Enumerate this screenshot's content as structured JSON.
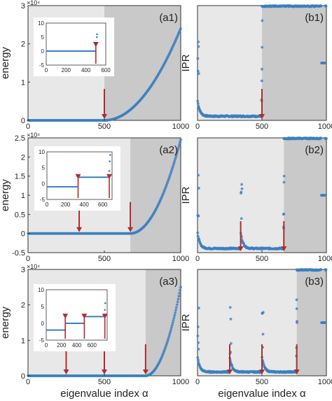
{
  "figure": {
    "colors": {
      "data": "#3b7fc0",
      "arrow": "#b22b2b",
      "shade_light": "#e8e8e8",
      "shade_dark": "#c9c9c9"
    }
  },
  "chart_data": [
    {
      "id": "a1",
      "type": "scatter",
      "panel_label": "(a1)",
      "ylabel": "energy",
      "xlabel": "",
      "exponent": "×10⁴",
      "xlim": [
        0,
        1000
      ],
      "ylim": [
        0,
        3
      ],
      "x_ticks": [
        "0",
        "500",
        "1000"
      ],
      "y_ticks": [
        "0",
        "1",
        "2",
        "3"
      ],
      "regions": [
        [
          0,
          500
        ],
        [
          500,
          1000
        ]
      ],
      "arrows": [
        500
      ],
      "series_model": {
        "kind": "energy",
        "thresholds": [
          500
        ],
        "curve": "quadratic",
        "y_end": 2.4
      },
      "inset": {
        "xlim": [
          0,
          600
        ],
        "ylim": [
          -5,
          10
        ],
        "x_ticks": [
          "0",
          "200",
          "400",
          "600"
        ],
        "y_ticks": [
          "-5",
          "0",
          "5",
          "10"
        ],
        "levels": [
          [
            0,
            500,
            0
          ]
        ],
        "spikes": [
          [
            500,
            2
          ],
          [
            510,
            5
          ],
          [
            512,
            6
          ]
        ],
        "arrows": [
          500
        ]
      }
    },
    {
      "id": "b1",
      "type": "scatter",
      "panel_label": "(b1)",
      "ylabel": "IPR",
      "xlabel": "",
      "xlim": [
        0,
        1000
      ],
      "ylim": [
        0,
        1
      ],
      "x_ticks": [
        "0",
        "500",
        "1000"
      ],
      "y_ticks": [],
      "regions": [
        [
          0,
          500
        ],
        [
          500,
          1000
        ]
      ],
      "arrows": [
        500
      ],
      "series_model": {
        "kind": "ipr",
        "thresholds": [
          500
        ],
        "high_level": 1.0,
        "tail_level": 0.5
      }
    },
    {
      "id": "a2",
      "type": "scatter",
      "panel_label": "(a2)",
      "ylabel": "energy",
      "xlabel": "",
      "exponent": "×10⁴",
      "xlim": [
        0,
        1000
      ],
      "ylim": [
        -0.5,
        2.5
      ],
      "x_ticks": [
        "0",
        "500",
        "1000"
      ],
      "y_ticks": [
        "-0.5",
        "0",
        "0.5",
        "1",
        "1.5",
        "2",
        "2.5"
      ],
      "regions": [
        [
          0,
          670
        ],
        [
          670,
          1000
        ]
      ],
      "arrows": [
        335,
        670
      ],
      "series_model": {
        "kind": "energy",
        "thresholds": [
          670
        ],
        "curve": "quadratic",
        "y_end": 2.45
      },
      "inset": {
        "xlim": [
          0,
          700
        ],
        "ylim": [
          -5,
          10
        ],
        "x_ticks": [
          "0",
          "200",
          "400",
          "600"
        ],
        "y_ticks": [
          "-5",
          "0",
          "5",
          "10"
        ],
        "levels": [
          [
            0,
            335,
            -1
          ],
          [
            335,
            670,
            2
          ]
        ],
        "spikes": [
          [
            670,
            4
          ],
          [
            675,
            7
          ],
          [
            680,
            9
          ]
        ],
        "arrows": [
          335,
          670
        ]
      }
    },
    {
      "id": "b2",
      "type": "scatter",
      "panel_label": "(b2)",
      "ylabel": "IPR",
      "xlabel": "",
      "xlim": [
        0,
        1000
      ],
      "ylim": [
        0,
        1
      ],
      "x_ticks": [
        "0",
        "500",
        "1000"
      ],
      "y_ticks": [],
      "regions": [
        [
          0,
          670
        ],
        [
          670,
          1000
        ]
      ],
      "arrows": [
        335,
        670
      ],
      "series_model": {
        "kind": "ipr",
        "thresholds": [
          335,
          670
        ],
        "high_level": 1.0,
        "tail_level": 0.5
      }
    },
    {
      "id": "a3",
      "type": "scatter",
      "panel_label": "(a3)",
      "ylabel": "energy",
      "xlabel": "eigenvalue index α",
      "exponent": "×10⁴",
      "xlim": [
        0,
        1000
      ],
      "ylim": [
        0,
        3
      ],
      "x_ticks": [
        "0",
        "500",
        "1000"
      ],
      "y_ticks": [
        "0",
        "1",
        "2",
        "3"
      ],
      "regions": [
        [
          0,
          770
        ],
        [
          770,
          1000
        ]
      ],
      "arrows": [
        250,
        500,
        770
      ],
      "series_model": {
        "kind": "energy",
        "thresholds": [
          770
        ],
        "curve": "quadratic",
        "y_end": 2.5
      },
      "inset": {
        "xlim": [
          0,
          800
        ],
        "ylim": [
          -5,
          10
        ],
        "x_ticks": [
          "0",
          "200",
          "400",
          "600"
        ],
        "y_ticks": [
          "-5",
          "0",
          "5",
          "10"
        ],
        "levels": [
          [
            0,
            250,
            -2
          ],
          [
            250,
            500,
            0
          ],
          [
            500,
            770,
            2
          ]
        ],
        "spikes": [
          [
            770,
            4
          ],
          [
            775,
            6
          ]
        ],
        "arrows": [
          250,
          500,
          770
        ]
      }
    },
    {
      "id": "b3",
      "type": "scatter",
      "panel_label": "(b3)",
      "ylabel": "IPR",
      "xlabel": "eigenvalue index α",
      "xlim": [
        0,
        1000
      ],
      "ylim": [
        0,
        1
      ],
      "x_ticks": [
        "0",
        "500",
        "1000"
      ],
      "y_ticks": [],
      "regions": [
        [
          0,
          770
        ],
        [
          770,
          1000
        ]
      ],
      "arrows": [
        250,
        500,
        770
      ],
      "series_model": {
        "kind": "ipr",
        "thresholds": [
          250,
          500,
          770
        ],
        "high_level": 1.0,
        "tail_level": 0.5
      }
    }
  ]
}
